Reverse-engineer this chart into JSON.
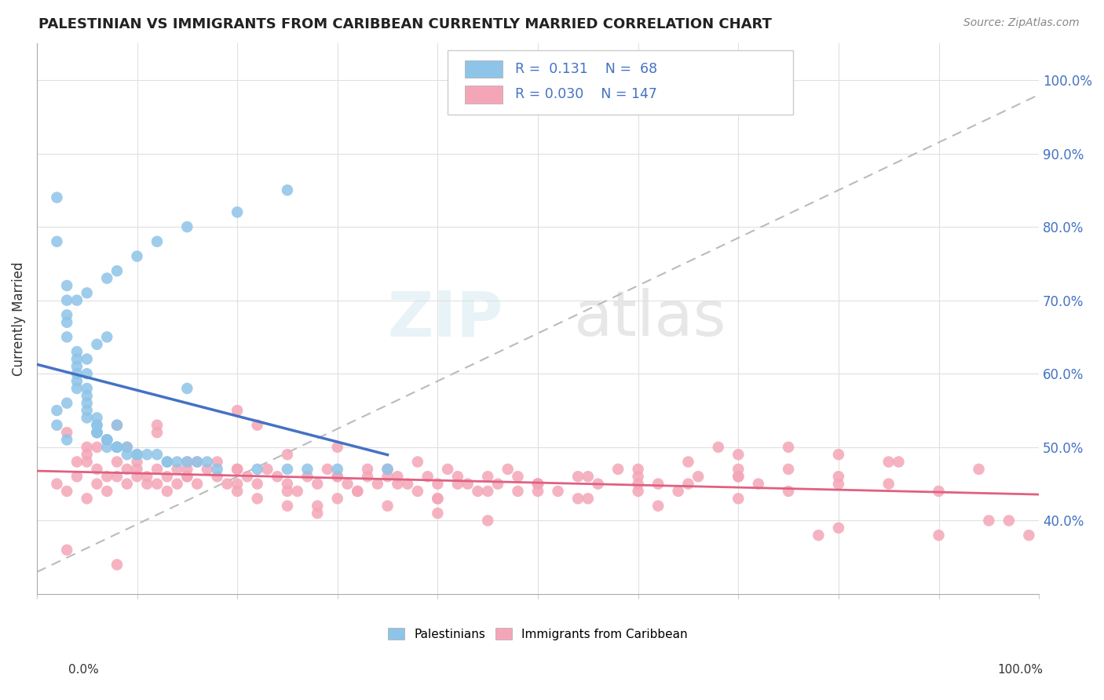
{
  "title": "PALESTINIAN VS IMMIGRANTS FROM CARIBBEAN CURRENTLY MARRIED CORRELATION CHART",
  "source": "Source: ZipAtlas.com",
  "ylabel": "Currently Married",
  "color_blue": "#8ec4e8",
  "color_pink": "#f4a6b8",
  "color_blue_line": "#4472c4",
  "color_pink_line": "#e06080",
  "color_dashed": "#bbbbbb",
  "watermark_zip": "ZIP",
  "watermark_atlas": "atlas",
  "xlim": [
    0.0,
    1.0
  ],
  "ylim": [
    0.3,
    1.05
  ],
  "ytick_vals": [
    0.4,
    0.5,
    0.6,
    0.7,
    0.8,
    0.9,
    1.0
  ],
  "ytick_labels": [
    "40.0%",
    "50.0%",
    "60.0%",
    "70.0%",
    "80.0%",
    "90.0%",
    "100.0%"
  ],
  "blue_scatter_x": [
    0.02,
    0.02,
    0.03,
    0.03,
    0.03,
    0.03,
    0.04,
    0.04,
    0.04,
    0.04,
    0.04,
    0.05,
    0.05,
    0.05,
    0.05,
    0.05,
    0.06,
    0.06,
    0.06,
    0.06,
    0.06,
    0.07,
    0.07,
    0.07,
    0.07,
    0.08,
    0.08,
    0.08,
    0.09,
    0.09,
    0.1,
    0.1,
    0.11,
    0.12,
    0.13,
    0.13,
    0.14,
    0.15,
    0.16,
    0.17,
    0.18,
    0.22,
    0.25,
    0.27,
    0.3,
    0.35,
    0.02,
    0.03,
    0.04,
    0.05,
    0.06,
    0.03,
    0.04,
    0.05,
    0.07,
    0.08,
    0.1,
    0.12,
    0.15,
    0.2,
    0.25,
    0.02,
    0.03,
    0.06,
    0.08,
    0.15,
    0.05,
    0.07
  ],
  "blue_scatter_y": [
    0.84,
    0.78,
    0.72,
    0.7,
    0.67,
    0.65,
    0.63,
    0.62,
    0.61,
    0.6,
    0.59,
    0.58,
    0.57,
    0.56,
    0.55,
    0.54,
    0.54,
    0.53,
    0.53,
    0.52,
    0.52,
    0.51,
    0.51,
    0.51,
    0.5,
    0.5,
    0.5,
    0.5,
    0.5,
    0.49,
    0.49,
    0.49,
    0.49,
    0.49,
    0.48,
    0.48,
    0.48,
    0.48,
    0.48,
    0.48,
    0.47,
    0.47,
    0.47,
    0.47,
    0.47,
    0.47,
    0.55,
    0.56,
    0.58,
    0.62,
    0.64,
    0.68,
    0.7,
    0.71,
    0.73,
    0.74,
    0.76,
    0.78,
    0.8,
    0.82,
    0.85,
    0.53,
    0.51,
    0.52,
    0.53,
    0.58,
    0.6,
    0.65
  ],
  "pink_scatter_x": [
    0.02,
    0.03,
    0.04,
    0.04,
    0.05,
    0.05,
    0.06,
    0.06,
    0.07,
    0.07,
    0.08,
    0.08,
    0.09,
    0.09,
    0.1,
    0.1,
    0.11,
    0.11,
    0.12,
    0.12,
    0.13,
    0.13,
    0.14,
    0.14,
    0.15,
    0.15,
    0.16,
    0.17,
    0.18,
    0.19,
    0.2,
    0.21,
    0.22,
    0.23,
    0.24,
    0.25,
    0.26,
    0.27,
    0.28,
    0.29,
    0.3,
    0.31,
    0.32,
    0.33,
    0.34,
    0.35,
    0.36,
    0.37,
    0.38,
    0.39,
    0.4,
    0.41,
    0.42,
    0.43,
    0.44,
    0.45,
    0.46,
    0.47,
    0.48,
    0.5,
    0.52,
    0.54,
    0.56,
    0.58,
    0.6,
    0.62,
    0.64,
    0.66,
    0.68,
    0.7,
    0.72,
    0.75,
    0.8,
    0.85,
    0.9,
    0.95,
    0.03,
    0.05,
    0.07,
    0.09,
    0.12,
    0.15,
    0.18,
    0.22,
    0.25,
    0.28,
    0.32,
    0.36,
    0.4,
    0.45,
    0.5,
    0.55,
    0.6,
    0.65,
    0.7,
    0.75,
    0.8,
    0.05,
    0.1,
    0.15,
    0.2,
    0.25,
    0.3,
    0.35,
    0.4,
    0.45,
    0.5,
    0.55,
    0.6,
    0.65,
    0.7,
    0.75,
    0.8,
    0.85,
    0.9,
    0.2,
    0.3,
    0.4,
    0.5,
    0.6,
    0.7,
    0.8,
    0.06,
    0.08,
    0.12,
    0.16,
    0.2,
    0.25,
    0.3,
    0.35,
    0.42,
    0.48,
    0.54,
    0.62,
    0.7,
    0.78,
    0.86,
    0.94,
    0.97,
    0.99,
    0.03,
    0.08,
    0.2,
    0.22,
    0.28,
    0.33,
    0.38
  ],
  "pink_scatter_y": [
    0.45,
    0.44,
    0.46,
    0.48,
    0.5,
    0.43,
    0.47,
    0.45,
    0.46,
    0.44,
    0.48,
    0.46,
    0.45,
    0.47,
    0.46,
    0.48,
    0.45,
    0.46,
    0.47,
    0.45,
    0.44,
    0.46,
    0.45,
    0.47,
    0.46,
    0.48,
    0.45,
    0.47,
    0.46,
    0.45,
    0.44,
    0.46,
    0.45,
    0.47,
    0.46,
    0.45,
    0.44,
    0.46,
    0.45,
    0.47,
    0.46,
    0.45,
    0.44,
    0.46,
    0.45,
    0.47,
    0.46,
    0.45,
    0.44,
    0.46,
    0.45,
    0.47,
    0.46,
    0.45,
    0.44,
    0.46,
    0.45,
    0.47,
    0.46,
    0.45,
    0.44,
    0.46,
    0.45,
    0.47,
    0.46,
    0.45,
    0.44,
    0.46,
    0.5,
    0.46,
    0.45,
    0.47,
    0.46,
    0.45,
    0.44,
    0.4,
    0.52,
    0.49,
    0.51,
    0.5,
    0.53,
    0.47,
    0.48,
    0.43,
    0.42,
    0.41,
    0.44,
    0.45,
    0.43,
    0.44,
    0.45,
    0.43,
    0.44,
    0.45,
    0.43,
    0.44,
    0.45,
    0.48,
    0.47,
    0.46,
    0.45,
    0.44,
    0.43,
    0.42,
    0.41,
    0.4,
    0.45,
    0.46,
    0.47,
    0.48,
    0.49,
    0.5,
    0.49,
    0.48,
    0.38,
    0.47,
    0.46,
    0.43,
    0.44,
    0.45,
    0.46,
    0.39,
    0.5,
    0.53,
    0.52,
    0.48,
    0.47,
    0.49,
    0.5,
    0.46,
    0.45,
    0.44,
    0.43,
    0.42,
    0.47,
    0.38,
    0.48,
    0.47,
    0.4,
    0.38,
    0.36,
    0.34,
    0.55,
    0.53,
    0.42,
    0.47,
    0.48
  ]
}
